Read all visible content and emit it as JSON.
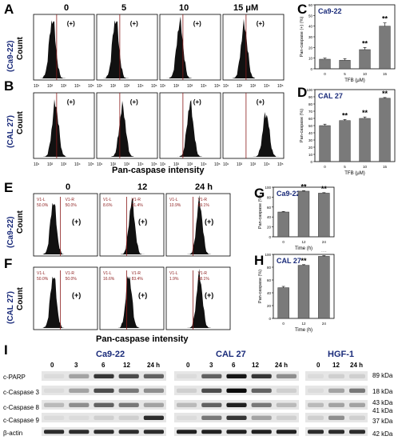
{
  "panels": {
    "A": "A",
    "B": "B",
    "C": "C",
    "D": "D",
    "E": "E",
    "F": "F",
    "G": "G",
    "H": "H",
    "I": "I"
  },
  "cells": {
    "ca922": "(Ca9-22)",
    "cal27": "(CAL 27)"
  },
  "count_label": "Count",
  "dose_labels": [
    "0",
    "5",
    "10",
    "15 μM"
  ],
  "time_labels": [
    "0",
    "12",
    "24  h"
  ],
  "x_axis_title": "Pan-caspase intensity",
  "plus": "(+)",
  "gates": {
    "E": [
      [
        "V1-L\n50.0%",
        "V1-R\n50.0%"
      ],
      [
        "V1-L\n8.6%",
        "V1-R\n91.4%"
      ],
      [
        "V1-L\n10.9%",
        "V1-R\n89.1%"
      ]
    ],
    "F": [
      [
        "V1-L\n50.0%",
        "V1-R\n50.0%"
      ],
      [
        "V1-L\n16.6%",
        "V1-R\n83.4%"
      ],
      [
        "V1-L\n1.9%",
        "V1-R\n98.1%"
      ]
    ]
  },
  "colors": {
    "bar": "#7a7a7a",
    "gate": "#8b1a1a",
    "cell_text": "#1a2b7a"
  },
  "chart_data": [
    {
      "type": "bar",
      "panel": "C",
      "title": "Ca9-22",
      "categories": [
        "0",
        "5",
        "10",
        "15"
      ],
      "values": [
        9,
        8,
        18,
        40
      ],
      "errors": [
        1,
        1.5,
        2,
        3
      ],
      "xlabel": "TFB (μM)",
      "ylabel": "Pan-caspase (+) (%)",
      "ylim": [
        0,
        60
      ],
      "yticks": [
        0,
        10,
        20,
        30,
        40,
        50,
        60
      ],
      "sig": [
        "",
        "",
        "**",
        "**"
      ]
    },
    {
      "type": "bar",
      "panel": "D",
      "title": "CAL 27",
      "categories": [
        "0",
        "5",
        "10",
        "15"
      ],
      "values": [
        50,
        57,
        60,
        88
      ],
      "errors": [
        2,
        1.5,
        2,
        1
      ],
      "xlabel": "TFB (μM)",
      "ylabel": "Pan-caspase (%)",
      "ylim": [
        0,
        100
      ],
      "yticks": [
        0,
        10,
        20,
        30,
        40,
        50,
        60,
        70,
        80,
        90,
        100
      ],
      "sig": [
        "",
        "**",
        "**",
        "**"
      ]
    },
    {
      "type": "bar",
      "panel": "G",
      "title": "Ca9-22",
      "categories": [
        "0",
        "12",
        "24"
      ],
      "values": [
        50,
        92,
        88
      ],
      "errors": [
        1,
        1,
        1
      ],
      "xlabel": "Time (h)",
      "ylabel": "Pan-caspase (%)",
      "ylim": [
        0,
        100
      ],
      "yticks": [
        0,
        20,
        40,
        60,
        80,
        100
      ],
      "sig": [
        "",
        "**",
        "**"
      ]
    },
    {
      "type": "bar",
      "panel": "H",
      "title": "CAL 27",
      "categories": [
        "0",
        "12",
        "24"
      ],
      "values": [
        48,
        83,
        97
      ],
      "errors": [
        2,
        1,
        1
      ],
      "xlabel": "Time (h)",
      "ylabel": "Pan-caspase (%)",
      "ylim": [
        0,
        100
      ],
      "yticks": [
        0,
        20,
        40,
        60,
        80,
        100
      ],
      "sig": [
        "",
        "**",
        "**"
      ]
    }
  ],
  "western": {
    "groups": [
      {
        "name": "Ca9-22",
        "lanes": [
          "0",
          "3",
          "6",
          "12",
          "24 h"
        ]
      },
      {
        "name": "CAL 27",
        "lanes": [
          "0",
          "3",
          "6",
          "12",
          "24 h"
        ]
      },
      {
        "name": "HGF-1",
        "lanes": [
          "0",
          "12",
          "24 h"
        ]
      }
    ],
    "rows": [
      "c-PARP",
      "c-Caspase 3",
      "c-Caspase 8",
      "c-Caspase 9",
      "β-actin"
    ],
    "kda": [
      "89 kDa",
      "18 kDa",
      "43 kDa",
      "41 kDa",
      "37 kDa",
      "42 kDa"
    ]
  }
}
